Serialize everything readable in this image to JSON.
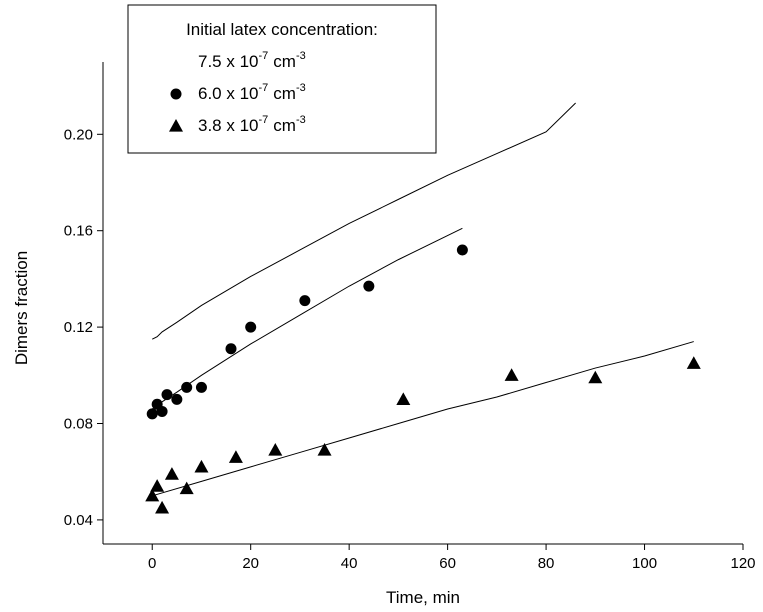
{
  "chart_data": {
    "type": "scatter",
    "title": "",
    "xlabel": "Time, min",
    "ylabel": "Dimers fraction",
    "xlim": [
      -10,
      120
    ],
    "ylim": [
      0.03,
      0.23
    ],
    "xticks": [
      0,
      20,
      40,
      60,
      80,
      100,
      120
    ],
    "yticks": [
      0.04,
      0.08,
      0.12,
      0.16,
      0.2
    ],
    "ytick_labels": [
      "0.04",
      "0.08",
      "0.12",
      "0.16",
      "0.20"
    ],
    "grid": false,
    "legend": {
      "placement": "top-left",
      "header": "Initial latex concentration:",
      "unit": "cm",
      "exponent": "-3",
      "entries": [
        {
          "marker": "none",
          "value": "7.5 x 10",
          "power": "-7"
        },
        {
          "marker": "circle",
          "value": "6.0 x 10",
          "power": "-7"
        },
        {
          "marker": "triangle",
          "value": "3.8 x 10",
          "power": "-7"
        }
      ]
    },
    "series": [
      {
        "marker": "none",
        "line_x": [
          0,
          1,
          2,
          5,
          10,
          20,
          30,
          40,
          50,
          60,
          70,
          80,
          86
        ],
        "line_y": [
          0.115,
          0.116,
          0.118,
          0.122,
          0.129,
          0.141,
          0.152,
          0.163,
          0.173,
          0.183,
          0.192,
          0.201,
          0.213
        ],
        "x": [],
        "y": []
      },
      {
        "marker": "circle",
        "x": [
          0,
          1,
          2,
          3,
          5,
          7,
          10,
          16,
          20,
          31,
          44,
          63
        ],
        "y": [
          0.084,
          0.088,
          0.085,
          0.092,
          0.09,
          0.095,
          0.095,
          0.111,
          0.12,
          0.131,
          0.137,
          0.152
        ],
        "line_x": [
          0,
          2,
          5,
          10,
          20,
          30,
          40,
          50,
          63
        ],
        "line_y": [
          0.086,
          0.089,
          0.093,
          0.1,
          0.113,
          0.125,
          0.137,
          0.148,
          0.161
        ]
      },
      {
        "marker": "triangle",
        "x": [
          0,
          1,
          2,
          4,
          7,
          10,
          17,
          25,
          35,
          51,
          73,
          90,
          110
        ],
        "y": [
          0.05,
          0.054,
          0.045,
          0.059,
          0.053,
          0.062,
          0.066,
          0.069,
          0.069,
          0.09,
          0.1,
          0.099,
          0.105
        ],
        "line_x": [
          0,
          10,
          20,
          30,
          40,
          50,
          60,
          70,
          80,
          90,
          100,
          110
        ],
        "line_y": [
          0.05,
          0.056,
          0.062,
          0.068,
          0.074,
          0.08,
          0.086,
          0.091,
          0.097,
          0.103,
          0.108,
          0.114
        ]
      }
    ]
  }
}
